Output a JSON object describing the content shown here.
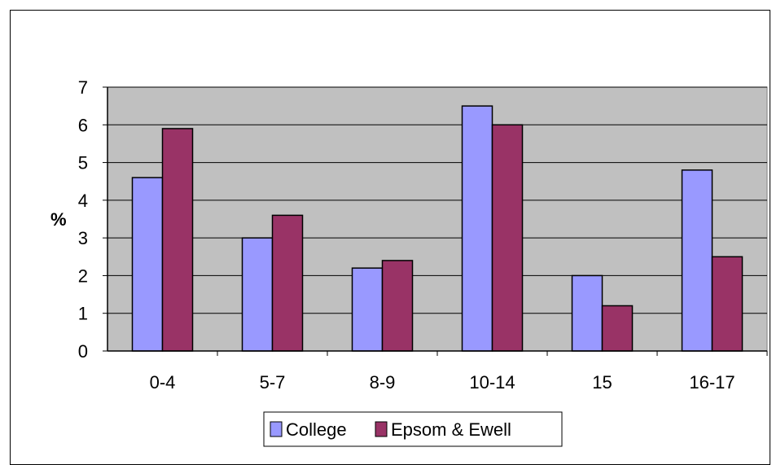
{
  "chart_data": {
    "type": "bar",
    "categories": [
      "0-4",
      "5-7",
      "8-9",
      "10-14",
      "15",
      "16-17"
    ],
    "series": [
      {
        "name": "College",
        "values": [
          4.6,
          3.0,
          2.2,
          6.5,
          2.0,
          4.8
        ],
        "color": "#9999ff"
      },
      {
        "name": "Epsom & Ewell",
        "values": [
          5.9,
          3.6,
          2.4,
          6.0,
          1.2,
          2.5
        ],
        "color": "#993366"
      }
    ],
    "title": "",
    "xlabel": "",
    "ylabel": "%",
    "ylim": [
      0,
      7
    ],
    "yticks": [
      "0",
      "1",
      "2",
      "3",
      "4",
      "5",
      "6",
      "7"
    ],
    "grid": true,
    "plot_background": "#c0c0c0",
    "legend_position": "bottom"
  }
}
